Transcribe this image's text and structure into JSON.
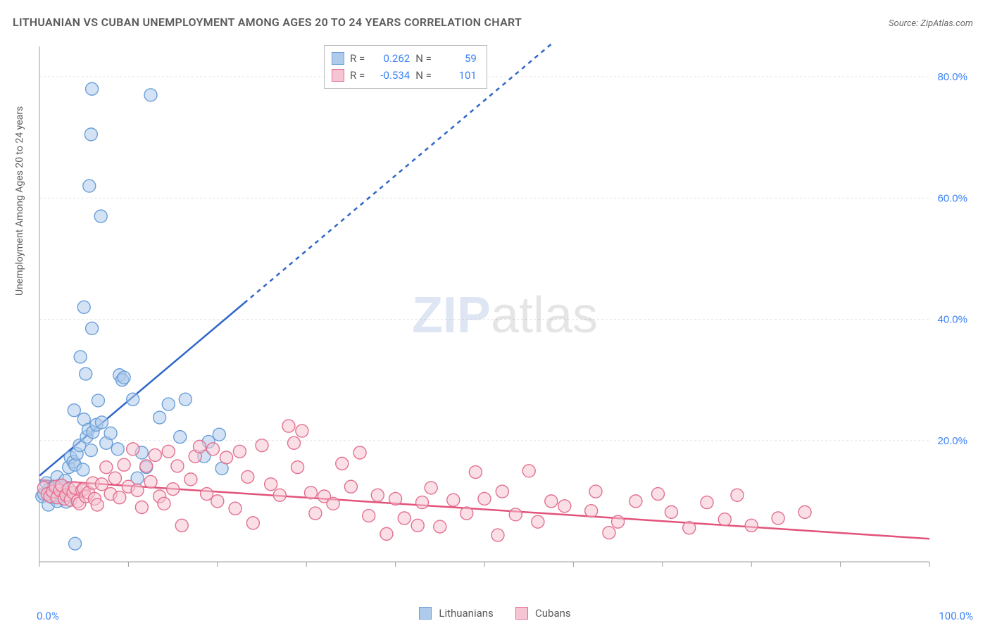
{
  "title": "LITHUANIAN VS CUBAN UNEMPLOYMENT AMONG AGES 20 TO 24 YEARS CORRELATION CHART",
  "source": "Source: ZipAtlas.com",
  "y_axis_label": "Unemployment Among Ages 20 to 24 years",
  "watermark": {
    "bold": "ZIP",
    "rest": "atlas"
  },
  "chart": {
    "type": "scatter",
    "xlim": [
      0,
      100
    ],
    "ylim": [
      0,
      85
    ],
    "x_ticks": [
      0,
      10,
      20,
      30,
      40,
      50,
      60,
      70,
      80,
      90,
      100
    ],
    "y_ticks": [
      20,
      40,
      60,
      80
    ],
    "y_tick_labels": [
      "20.0%",
      "40.0%",
      "60.0%",
      "80.0%"
    ],
    "x_min_label": "0.0%",
    "x_max_label": "100.0%",
    "grid_color": "#e5e5e5",
    "axis_color": "#9e9e9e",
    "tick_label_color": "#3b82f6",
    "background_color": "#ffffff",
    "marker_radius": 9,
    "marker_opacity": 0.55,
    "series": [
      {
        "name": "Lithuanians",
        "color_fill": "#aecbeb",
        "color_stroke": "#6a9fd8",
        "r_label": "R =",
        "r_value": "0.262",
        "n_label": "N =",
        "n_value": "59",
        "trend": {
          "x1": 0,
          "y1": 14.2,
          "x2": 100,
          "y2": 138,
          "solid_until_x": 23,
          "color": "#2f66c9",
          "width": 2.5,
          "dash": "6,6"
        },
        "points": [
          [
            0.3,
            10.8
          ],
          [
            0.5,
            11.2
          ],
          [
            0.8,
            13.0
          ],
          [
            1.0,
            9.4
          ],
          [
            1.1,
            12.0
          ],
          [
            1.3,
            11.6
          ],
          [
            1.5,
            10.6
          ],
          [
            1.6,
            12.4
          ],
          [
            1.8,
            11.0
          ],
          [
            2.0,
            14.0
          ],
          [
            2.0,
            10.0
          ],
          [
            2.3,
            12.6
          ],
          [
            2.5,
            11.2
          ],
          [
            2.9,
            13.4
          ],
          [
            3.0,
            9.9
          ],
          [
            3.3,
            15.6
          ],
          [
            3.5,
            17.2
          ],
          [
            3.8,
            16.5
          ],
          [
            4.0,
            16.0
          ],
          [
            4.2,
            17.8
          ],
          [
            4.5,
            19.2
          ],
          [
            4.9,
            15.2
          ],
          [
            5.0,
            23.5
          ],
          [
            5.3,
            20.6
          ],
          [
            5.5,
            21.8
          ],
          [
            5.8,
            18.4
          ],
          [
            5.2,
            31.0
          ],
          [
            4.6,
            33.8
          ],
          [
            3.9,
            25.0
          ],
          [
            6.0,
            21.4
          ],
          [
            6.4,
            22.6
          ],
          [
            6.6,
            26.6
          ],
          [
            7.0,
            23.0
          ],
          [
            7.5,
            19.6
          ],
          [
            8.0,
            21.2
          ],
          [
            8.8,
            18.6
          ],
          [
            9.0,
            30.8
          ],
          [
            9.3,
            30.0
          ],
          [
            9.5,
            30.4
          ],
          [
            10.5,
            26.8
          ],
          [
            11.0,
            13.8
          ],
          [
            11.5,
            18.0
          ],
          [
            12.0,
            15.6
          ],
          [
            13.5,
            23.8
          ],
          [
            14.5,
            26.0
          ],
          [
            15.8,
            20.6
          ],
          [
            16.4,
            26.8
          ],
          [
            18.5,
            17.4
          ],
          [
            19.0,
            19.8
          ],
          [
            20.2,
            21.0
          ],
          [
            20.5,
            15.4
          ],
          [
            5.0,
            42.0
          ],
          [
            5.9,
            38.5
          ],
          [
            6.9,
            57.0
          ],
          [
            5.6,
            62.0
          ],
          [
            5.8,
            70.5
          ],
          [
            5.9,
            78.0
          ],
          [
            12.5,
            77.0
          ],
          [
            4.0,
            3.0
          ]
        ]
      },
      {
        "name": "Cubans",
        "color_fill": "#f6c5d4",
        "color_stroke": "#e2708f",
        "r_label": "R =",
        "r_value": "-0.534",
        "n_label": "N =",
        "n_value": "101",
        "trend": {
          "x1": 0,
          "y1": 13.5,
          "x2": 100,
          "y2": 3.8,
          "solid_until_x": 100,
          "color": "#e2527a",
          "width": 2.5,
          "dash": ""
        },
        "points": [
          [
            0.5,
            12.2
          ],
          [
            0.9,
            11.2
          ],
          [
            1.2,
            10.8
          ],
          [
            1.5,
            11.6
          ],
          [
            1.8,
            12.4
          ],
          [
            2.0,
            10.6
          ],
          [
            2.3,
            11.8
          ],
          [
            2.5,
            12.6
          ],
          [
            2.8,
            10.4
          ],
          [
            3.0,
            11.0
          ],
          [
            3.3,
            12.0
          ],
          [
            3.5,
            10.2
          ],
          [
            3.8,
            11.4
          ],
          [
            4.0,
            12.2
          ],
          [
            4.3,
            10.0
          ],
          [
            4.5,
            9.6
          ],
          [
            4.8,
            11.8
          ],
          [
            5.0,
            12.0
          ],
          [
            5.2,
            10.8
          ],
          [
            5.5,
            11.4
          ],
          [
            6.0,
            13.0
          ],
          [
            6.2,
            10.4
          ],
          [
            6.5,
            9.4
          ],
          [
            7.0,
            12.8
          ],
          [
            7.5,
            15.6
          ],
          [
            8.0,
            11.2
          ],
          [
            8.5,
            13.8
          ],
          [
            9.0,
            10.6
          ],
          [
            9.5,
            16.0
          ],
          [
            10.0,
            12.4
          ],
          [
            10.5,
            18.6
          ],
          [
            11.0,
            11.8
          ],
          [
            11.5,
            9.0
          ],
          [
            12.0,
            15.8
          ],
          [
            12.5,
            13.2
          ],
          [
            13.0,
            17.6
          ],
          [
            13.5,
            10.8
          ],
          [
            14.0,
            9.6
          ],
          [
            14.5,
            18.2
          ],
          [
            15.0,
            12.0
          ],
          [
            15.5,
            15.8
          ],
          [
            16.0,
            6.0
          ],
          [
            17.0,
            13.6
          ],
          [
            17.5,
            17.4
          ],
          [
            18.0,
            19.0
          ],
          [
            18.8,
            11.2
          ],
          [
            19.5,
            18.6
          ],
          [
            20.0,
            10.0
          ],
          [
            21.0,
            17.2
          ],
          [
            22.0,
            8.8
          ],
          [
            22.5,
            18.2
          ],
          [
            23.4,
            14.0
          ],
          [
            24.0,
            6.4
          ],
          [
            25.0,
            19.2
          ],
          [
            26.0,
            12.8
          ],
          [
            27.0,
            11.0
          ],
          [
            28.0,
            22.4
          ],
          [
            28.6,
            19.6
          ],
          [
            29.0,
            15.6
          ],
          [
            29.5,
            21.6
          ],
          [
            30.5,
            11.4
          ],
          [
            31.0,
            8.0
          ],
          [
            32.0,
            10.8
          ],
          [
            33.0,
            9.6
          ],
          [
            34.0,
            16.2
          ],
          [
            35.0,
            12.4
          ],
          [
            36.0,
            18.0
          ],
          [
            37.0,
            7.6
          ],
          [
            38.0,
            11.0
          ],
          [
            39.0,
            4.6
          ],
          [
            40.0,
            10.4
          ],
          [
            41.0,
            7.2
          ],
          [
            42.5,
            6.0
          ],
          [
            43.0,
            9.8
          ],
          [
            44.0,
            12.2
          ],
          [
            45.0,
            5.8
          ],
          [
            46.5,
            10.2
          ],
          [
            48.0,
            8.0
          ],
          [
            49.0,
            14.8
          ],
          [
            50.0,
            10.4
          ],
          [
            51.5,
            4.4
          ],
          [
            52.0,
            11.6
          ],
          [
            53.5,
            7.8
          ],
          [
            55.0,
            15.0
          ],
          [
            56.0,
            6.6
          ],
          [
            57.5,
            10.0
          ],
          [
            59.0,
            9.2
          ],
          [
            62.0,
            8.4
          ],
          [
            62.5,
            11.6
          ],
          [
            64.0,
            4.8
          ],
          [
            65.0,
            6.6
          ],
          [
            67.0,
            10.0
          ],
          [
            69.5,
            11.2
          ],
          [
            71.0,
            8.2
          ],
          [
            73.0,
            5.6
          ],
          [
            75.0,
            9.8
          ],
          [
            77.0,
            7.0
          ],
          [
            78.4,
            11.0
          ],
          [
            80.0,
            6.0
          ],
          [
            83.0,
            7.2
          ],
          [
            86.0,
            8.2
          ]
        ]
      }
    ],
    "legend": {
      "series1_label": "Lithuanians",
      "series2_label": "Cubans"
    }
  }
}
